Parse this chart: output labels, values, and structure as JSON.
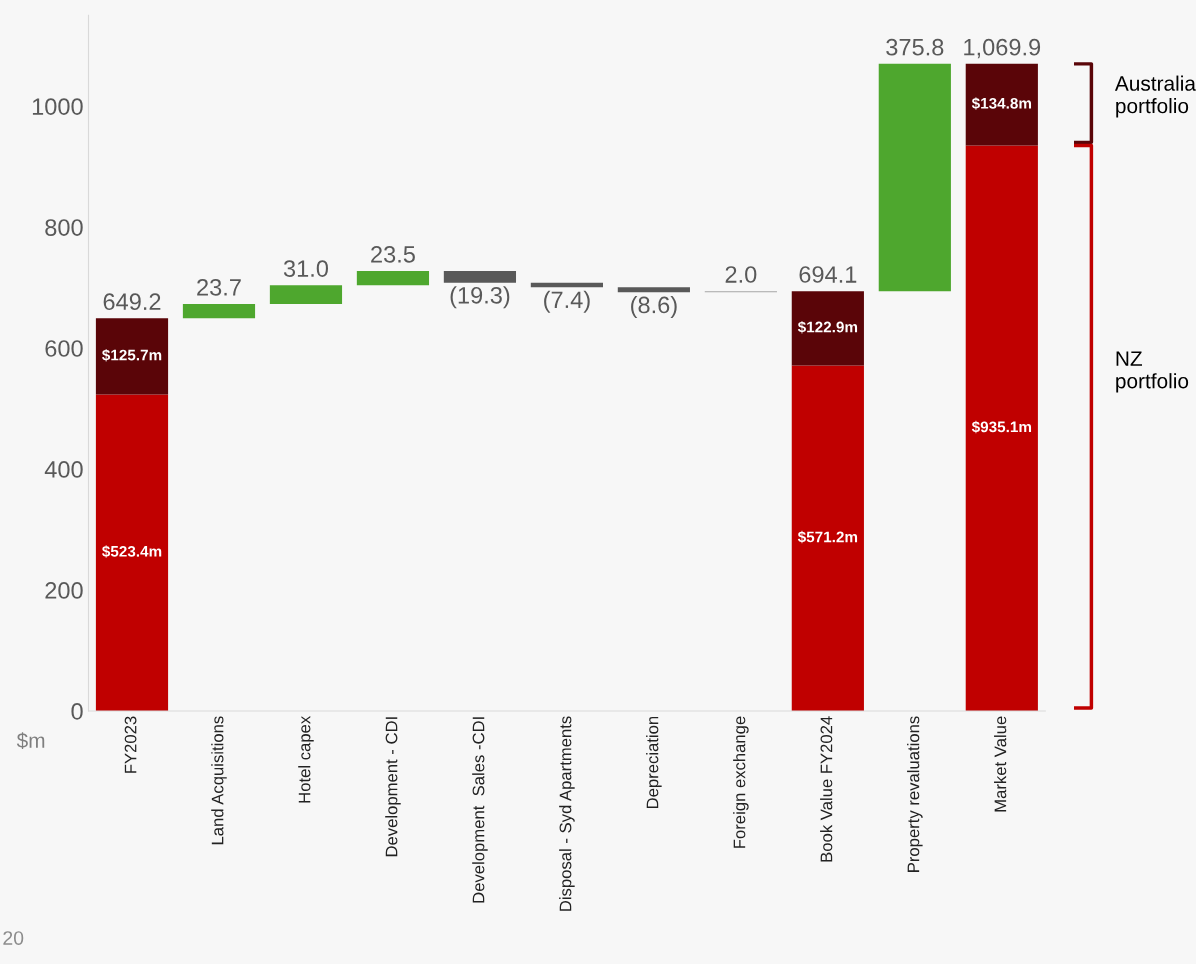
{
  "chart_data": {
    "type": "bar",
    "categories": [
      "FY2023",
      "Land Acquisitions",
      "Hotel capex",
      "Development - CDI",
      "Development  Sales -CDI",
      "Disposal - Syd Apartments",
      "Depreciation",
      "Foreign exchange",
      "Book Value FY2024",
      "Property revaluations",
      "Market Value"
    ],
    "series": [
      {
        "color": "#c00000",
        "values": [
          523.4,
          null,
          null,
          null,
          null,
          null,
          null,
          null,
          571.2,
          null,
          935.1
        ],
        "base": [
          0,
          null,
          null,
          null,
          null,
          null,
          null,
          null,
          0,
          null,
          0
        ],
        "value_labels": [
          "$523.4m",
          null,
          null,
          null,
          null,
          null,
          null,
          null,
          "$571.2m",
          null,
          "$935.1m"
        ]
      },
      {
        "color": "#5a0508",
        "values": [
          125.7,
          null,
          null,
          null,
          null,
          null,
          null,
          null,
          122.9,
          null,
          134.8
        ],
        "base": [
          523.4,
          null,
          null,
          null,
          null,
          null,
          null,
          null,
          571.2,
          null,
          935.1
        ],
        "value_labels": [
          "$125.7m",
          null,
          null,
          null,
          null,
          null,
          null,
          null,
          "$122.9m",
          null,
          "$134.8m"
        ]
      },
      {
        "color": "#4ea72e",
        "values": [
          null,
          23.7,
          31.0,
          23.5,
          null,
          null,
          null,
          null,
          null,
          375.8,
          null
        ],
        "base": [
          null,
          649.2,
          672.9,
          703.9,
          null,
          null,
          null,
          null,
          null,
          694.1,
          null
        ],
        "value_labels": [
          null,
          "23.7",
          "31.0",
          "23.5",
          null,
          null,
          null,
          null,
          null,
          "375.8",
          null
        ]
      },
      {
        "color": "#595959",
        "values": [
          null,
          null,
          null,
          null,
          -19.3,
          -7.4,
          -8.6,
          null,
          null,
          null,
          null
        ],
        "base": [
          null,
          null,
          null,
          null,
          727.4,
          708.1,
          700.7,
          null,
          null,
          null,
          null
        ],
        "value_labels": [
          null,
          null,
          null,
          null,
          "(19.3)",
          "(7.4)",
          "(8.6)",
          null,
          null,
          null,
          null
        ]
      },
      {
        "color": "#a6a6a6",
        "values": [
          null,
          null,
          null,
          null,
          null,
          null,
          null,
          2.0,
          null,
          null,
          null
        ],
        "base": [
          null,
          null,
          null,
          null,
          null,
          null,
          null,
          692.1,
          null,
          null,
          null
        ],
        "value_labels": [
          null,
          null,
          null,
          null,
          null,
          null,
          null,
          "2.0",
          null,
          null,
          null
        ]
      }
    ],
    "totals": [
      "649.2",
      null,
      null,
      null,
      null,
      null,
      null,
      null,
      "694.1",
      null,
      "1,069.9"
    ],
    "ylabel": "$m",
    "ylim": [
      0,
      1150
    ],
    "yticks": [
      0,
      200,
      400,
      600,
      800,
      1000
    ],
    "grid": false,
    "annotations": [
      "Australia portfolio",
      "NZ portfolio",
      "20"
    ]
  }
}
